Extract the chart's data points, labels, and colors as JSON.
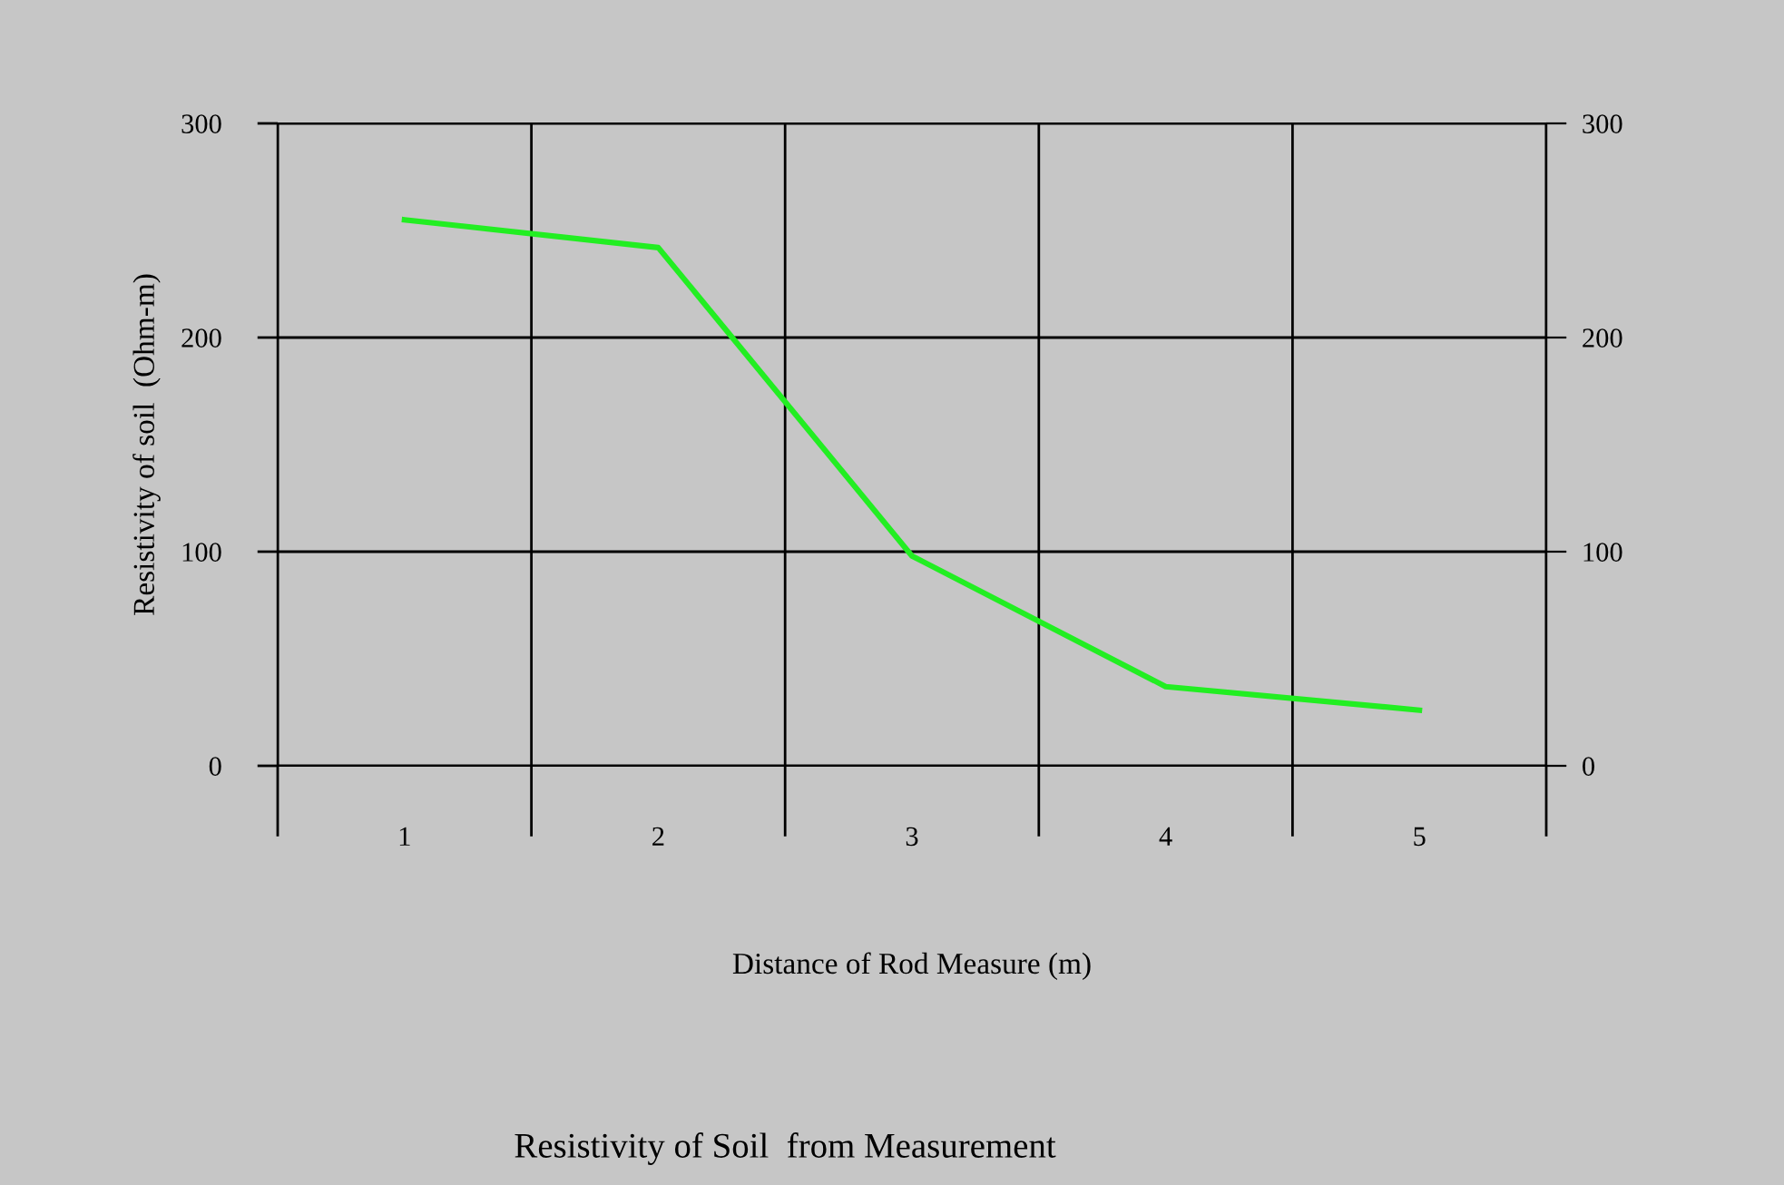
{
  "chart_data": {
    "type": "line",
    "title": "Resistivity of Soil  from Measurement",
    "xlabel": "Distance of Rod Measure (m)",
    "ylabel": "Resistivity of soil  (Ohm-m)",
    "categories": [
      "1",
      "2",
      "3",
      "4",
      "5"
    ],
    "series": [
      {
        "color": "#22ee22",
        "values": [
          255,
          242,
          98,
          37,
          26
        ]
      }
    ],
    "ylim": [
      0,
      300
    ],
    "yticks": [
      0,
      100,
      200,
      300
    ],
    "y2lim": [
      0,
      300
    ],
    "y2ticks": [
      0,
      100,
      200,
      300
    ],
    "grid": true,
    "marker": "none",
    "line_style": "solid"
  }
}
